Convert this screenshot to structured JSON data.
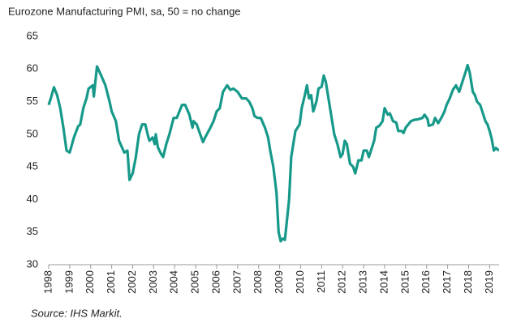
{
  "chart_data": {
    "type": "line",
    "title": "Eurozone Manufacturing PMI, sa, 50 = no change",
    "source": "Source: IHS Markit.",
    "color": "#17998a",
    "x": [
      1998.0,
      1998.1,
      1998.25,
      1998.4,
      1998.55,
      1998.7,
      1998.85,
      1999.0,
      1999.2,
      1999.4,
      1999.5,
      1999.65,
      1999.8,
      1999.9,
      2000.1,
      2000.15,
      2000.3,
      2000.5,
      2000.7,
      2000.9,
      2001.0,
      2001.2,
      2001.35,
      2001.6,
      2001.75,
      2001.85,
      2002.0,
      2002.15,
      2002.3,
      2002.45,
      2002.6,
      2002.75,
      2002.8,
      2002.95,
      2003.05,
      2003.1,
      2003.2,
      2003.35,
      2003.45,
      2003.6,
      2003.75,
      2003.95,
      2004.1,
      2004.35,
      2004.5,
      2004.7,
      2004.85,
      2004.9,
      2005.05,
      2005.35,
      2005.45,
      2005.7,
      2005.85,
      2006.0,
      2006.15,
      2006.3,
      2006.5,
      2006.65,
      2006.8,
      2007.0,
      2007.2,
      2007.4,
      2007.55,
      2007.7,
      2007.8,
      2007.95,
      2008.1,
      2008.3,
      2008.45,
      2008.55,
      2008.7,
      2008.85,
      2008.95,
      2009.05,
      2009.15,
      2009.25,
      2009.45,
      2009.55,
      2009.75,
      2009.95,
      2010.05,
      2010.2,
      2010.3,
      2010.4,
      2010.5,
      2010.6,
      2010.75,
      2010.85,
      2011.0,
      2011.1,
      2011.2,
      2011.35,
      2011.5,
      2011.6,
      2011.75,
      2011.9,
      2012.0,
      2012.1,
      2012.2,
      2012.35,
      2012.5,
      2012.6,
      2012.75,
      2012.9,
      2013.0,
      2013.15,
      2013.25,
      2013.35,
      2013.5,
      2013.6,
      2013.75,
      2013.9,
      2014.0,
      2014.15,
      2014.25,
      2014.4,
      2014.55,
      2014.65,
      2014.8,
      2014.9,
      2015.0,
      2015.25,
      2015.4,
      2015.6,
      2015.8,
      2015.9,
      2016.05,
      2016.1,
      2016.3,
      2016.4,
      2016.55,
      2016.7,
      2016.85,
      2016.95,
      2017.1,
      2017.25,
      2017.4,
      2017.55,
      2017.7,
      2017.85,
      2017.95,
      2018.05,
      2018.2,
      2018.3,
      2018.4,
      2018.55,
      2018.7,
      2018.8,
      2018.9,
      2019.0,
      2019.1,
      2019.2,
      2019.3,
      2019.4,
      2019.45
    ],
    "values": [
      54.5,
      55.5,
      57.2,
      56,
      54,
      51,
      47.5,
      47.2,
      49.5,
      51.2,
      51.5,
      54,
      55.5,
      57,
      57.5,
      55.8,
      60.4,
      59,
      57.5,
      55,
      53.5,
      52,
      49,
      47.2,
      47.5,
      43,
      44,
      46.5,
      50,
      51.5,
      51.5,
      49.5,
      49,
      49.5,
      48.5,
      50,
      48,
      47,
      46.5,
      48.5,
      50,
      52.5,
      52.5,
      54.5,
      54.5,
      53,
      51,
      52,
      51.5,
      48.8,
      49.5,
      51,
      52,
      53.5,
      54,
      56.5,
      57.5,
      56.8,
      57,
      56.5,
      55.5,
      55.5,
      55,
      54,
      52.8,
      52.5,
      52.5,
      51,
      49.5,
      47.5,
      45,
      41,
      35,
      33.6,
      34,
      33.8,
      40,
      46.5,
      50.5,
      51.5,
      54,
      56,
      57.5,
      55.5,
      56,
      53.5,
      55,
      57,
      57.3,
      59,
      58,
      55,
      52,
      50,
      48.5,
      46.5,
      47,
      49,
      48.5,
      45.5,
      45,
      44,
      46,
      46,
      47.5,
      47.5,
      46.5,
      47.5,
      49,
      51,
      51.3,
      52,
      54,
      53,
      53.2,
      52,
      51.8,
      50.5,
      50.5,
      50.2,
      51,
      52,
      52.2,
      52.3,
      52.5,
      53,
      52.3,
      51.3,
      51.5,
      52.5,
      51.7,
      52.5,
      53.5,
      54.5,
      55.5,
      56.8,
      57.5,
      56.5,
      58,
      59.5,
      60.6,
      59.5,
      56.5,
      56,
      55,
      54.5,
      53,
      52,
      51.5,
      50.5,
      49.3,
      47.5,
      47.9,
      47.6,
      47.6
    ],
    "xlim": [
      1998,
      2019.45
    ],
    "xticks": [
      1998,
      1999,
      2000,
      2001,
      2002,
      2003,
      2004,
      2005,
      2006,
      2007,
      2008,
      2009,
      2010,
      2011,
      2012,
      2013,
      2014,
      2015,
      2016,
      2017,
      2018,
      2019
    ],
    "ylim": [
      30,
      65
    ],
    "yticks": [
      30,
      35,
      40,
      45,
      50,
      55,
      60,
      65
    ]
  }
}
